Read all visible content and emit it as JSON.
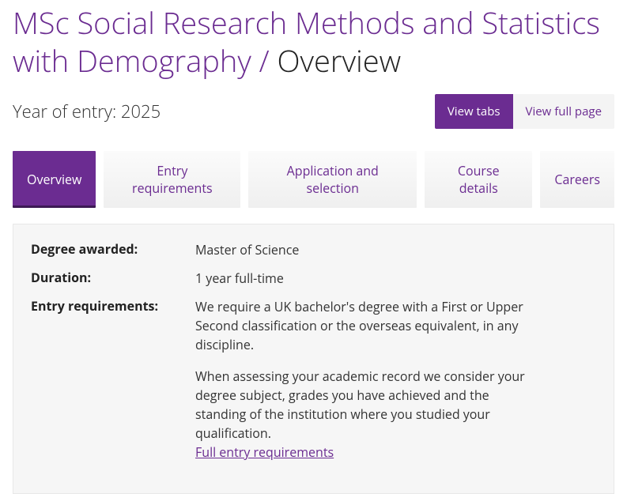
{
  "header": {
    "title_main": "MSc Social Research Methods and Statistics with Demography",
    "title_separator": " / ",
    "title_sub": "Overview"
  },
  "meta": {
    "year_entry": "Year of entry: 2025",
    "view_tabs": "View tabs",
    "view_full": "View full page"
  },
  "tabs": {
    "overview": "Overview",
    "entry": "Entry requirements",
    "application": "Application and selection",
    "course": "Course details",
    "careers": "Careers"
  },
  "panel": {
    "degree_label": "Degree awarded:",
    "degree_value": "Master of Science",
    "duration_label": "Duration:",
    "duration_value": "1 year full-time",
    "entry_label": "Entry requirements:",
    "entry_p1": "We require a UK bachelor's degree with a First or Upper Second classification or the overseas equivalent, in any discipline.",
    "entry_p2": "When assessing your academic record we consider your degree subject, grades you have achieved and the standing of the institution where you studied your qualification.",
    "entry_link": "Full entry requirements"
  }
}
